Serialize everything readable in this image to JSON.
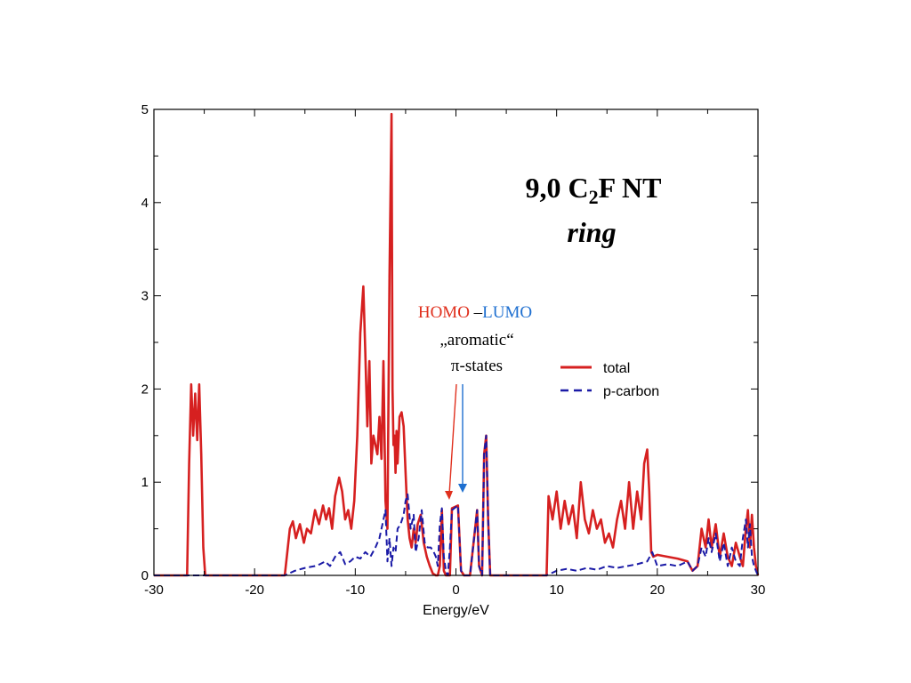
{
  "colors": {
    "total": "#d62020",
    "p_carbon": "#1a1aa6",
    "homo": "#e0301e",
    "lumo": "#1e6fd0"
  },
  "title": {
    "main_prefix": "9,0 C",
    "subscript": "2",
    "main_suffix": "F NT",
    "subtitle": "ring"
  },
  "annotation": {
    "homo": "HOMO",
    "dash": " –",
    "lumo": "LUMO",
    "line2": "„aromatic“",
    "line3": "π-states"
  },
  "chart_data": {
    "type": "line",
    "xlabel": "Energy/eV",
    "ylabel": "",
    "xlim": [
      -30,
      30
    ],
    "ylim": [
      0,
      5
    ],
    "xticks": [
      -30,
      -20,
      -10,
      0,
      10,
      20,
      30
    ],
    "yticks": [
      0,
      1,
      2,
      3,
      4,
      5
    ],
    "xtick_labels": [
      "-30",
      "-20",
      "-10",
      "0",
      "10",
      "20",
      "30"
    ],
    "ytick_labels": [
      "0",
      "1",
      "2",
      "3",
      "4",
      "5"
    ],
    "legend_position": "right",
    "series": [
      {
        "name": "total",
        "style": "solid",
        "x": [
          -30,
          -26.7,
          -26.5,
          -26.3,
          -26.1,
          -25.9,
          -25.7,
          -25.5,
          -25.3,
          -25.1,
          -24.9,
          -17.0,
          -16.5,
          -16.2,
          -15.9,
          -15.5,
          -15.1,
          -14.8,
          -14.4,
          -14.0,
          -13.6,
          -13.2,
          -12.9,
          -12.6,
          -12.3,
          -12.0,
          -11.6,
          -11.3,
          -11.0,
          -10.7,
          -10.4,
          -10.1,
          -9.8,
          -9.5,
          -9.2,
          -9.0,
          -8.8,
          -8.6,
          -8.4,
          -8.2,
          -8.0,
          -7.8,
          -7.6,
          -7.4,
          -7.2,
          -7.0,
          -6.8,
          -6.6,
          -6.4,
          -6.3,
          -6.2,
          -6.1,
          -6.0,
          -5.9,
          -5.8,
          -5.6,
          -5.4,
          -5.2,
          -5.0,
          -4.8,
          -4.6,
          -4.4,
          -4.2,
          -4.0,
          -3.8,
          -3.5,
          -3.2,
          -2.9,
          -2.6,
          -2.3,
          -2.0,
          -1.8,
          -1.6,
          -1.4,
          -1.2,
          -1.0,
          -0.8,
          -0.6,
          -0.4,
          0.2,
          0.5,
          0.8,
          1.1,
          1.4,
          2.1,
          2.3,
          2.6,
          2.8,
          3.0,
          3.2,
          3.4,
          3.6,
          3.8,
          4.0,
          9.0,
          9.2,
          9.6,
          10.0,
          10.4,
          10.8,
          11.2,
          11.6,
          12.0,
          12.4,
          12.8,
          13.2,
          13.6,
          14.0,
          14.4,
          14.8,
          15.2,
          15.6,
          16.0,
          16.4,
          16.8,
          17.2,
          17.6,
          18.0,
          18.4,
          18.7,
          19.0,
          19.2,
          19.4,
          19.6,
          20.0,
          21.0,
          22.0,
          23.0,
          23.5,
          24.0,
          24.4,
          24.8,
          25.1,
          25.4,
          25.8,
          26.2,
          26.6,
          27.0,
          27.4,
          27.8,
          28.2,
          28.5,
          28.8,
          29.0,
          29.2,
          29.4,
          29.6,
          29.8,
          30.0
        ],
        "y": [
          0,
          0,
          1.2,
          2.05,
          1.5,
          1.95,
          1.45,
          2.05,
          1.3,
          0.3,
          0,
          0,
          0.5,
          0.58,
          0.4,
          0.55,
          0.35,
          0.5,
          0.45,
          0.7,
          0.55,
          0.75,
          0.6,
          0.72,
          0.5,
          0.85,
          1.05,
          0.9,
          0.6,
          0.7,
          0.5,
          0.8,
          1.5,
          2.6,
          3.1,
          2.4,
          1.6,
          2.3,
          1.2,
          1.5,
          1.4,
          1.3,
          1.7,
          1.25,
          2.3,
          0.8,
          0.5,
          3.2,
          4.95,
          2.0,
          1.4,
          1.5,
          1.1,
          1.55,
          1.2,
          1.7,
          1.75,
          1.6,
          1.1,
          0.6,
          0.4,
          0.3,
          0.5,
          0.35,
          0.55,
          0.65,
          0.35,
          0.2,
          0.1,
          0.02,
          0,
          0,
          0.1,
          0.7,
          0.05,
          0,
          0,
          0,
          0.72,
          0.75,
          0.05,
          0,
          0,
          0,
          0.7,
          0.1,
          0,
          1.3,
          1.5,
          0.6,
          0,
          0,
          0,
          0,
          0,
          0.85,
          0.6,
          0.9,
          0.5,
          0.8,
          0.55,
          0.75,
          0.4,
          1.0,
          0.6,
          0.45,
          0.7,
          0.5,
          0.6,
          0.35,
          0.45,
          0.3,
          0.6,
          0.8,
          0.5,
          1.0,
          0.5,
          0.9,
          0.6,
          1.2,
          1.35,
          0.9,
          0.25,
          0.2,
          0.22,
          0.2,
          0.18,
          0.15,
          0.05,
          0.1,
          0.5,
          0.3,
          0.6,
          0.3,
          0.55,
          0.2,
          0.45,
          0.2,
          0.1,
          0.35,
          0.2,
          0.1,
          0.5,
          0.7,
          0.3,
          0.65,
          0.3,
          0.1,
          0
        ]
      },
      {
        "name": "p-carbon",
        "style": "dashed",
        "x": [
          -30,
          -17.0,
          -16.0,
          -15.0,
          -14.0,
          -13.5,
          -13.0,
          -12.5,
          -12.0,
          -11.5,
          -11.0,
          -10.5,
          -10.0,
          -9.5,
          -9.0,
          -8.5,
          -8.0,
          -7.6,
          -7.3,
          -7.0,
          -6.8,
          -6.6,
          -6.4,
          -6.2,
          -6.0,
          -5.8,
          -5.5,
          -5.2,
          -5.0,
          -4.8,
          -4.5,
          -4.2,
          -4.0,
          -3.7,
          -3.4,
          -3.1,
          -2.8,
          -2.5,
          -2.2,
          -2.0,
          -1.8,
          -1.6,
          -1.4,
          -1.2,
          -1.0,
          -0.8,
          -0.6,
          -0.4,
          0.2,
          0.5,
          0.8,
          1.1,
          1.4,
          2.1,
          2.3,
          2.6,
          2.8,
          3.0,
          3.2,
          3.4,
          3.6,
          3.8,
          4.0,
          9.0,
          10.0,
          11.0,
          12.0,
          13.0,
          14.0,
          15.0,
          16.0,
          17.0,
          18.0,
          19.0,
          19.5,
          20.0,
          21.0,
          22.0,
          23.0,
          23.5,
          24.0,
          24.4,
          24.8,
          25.1,
          25.4,
          25.8,
          26.2,
          26.6,
          27.0,
          27.4,
          27.8,
          28.2,
          28.5,
          28.8,
          29.0,
          29.2,
          29.4,
          29.6,
          29.8,
          30.0
        ],
        "y": [
          0,
          0,
          0.05,
          0.08,
          0.1,
          0.12,
          0.15,
          0.1,
          0.2,
          0.25,
          0.12,
          0.15,
          0.2,
          0.18,
          0.25,
          0.2,
          0.3,
          0.4,
          0.55,
          0.7,
          0.15,
          0.4,
          0.1,
          0.3,
          0.25,
          0.5,
          0.55,
          0.65,
          0.8,
          0.87,
          0.5,
          0.65,
          0.25,
          0.4,
          0.7,
          0.35,
          0.3,
          0.3,
          0.25,
          0.2,
          0.1,
          0.55,
          0.72,
          0.2,
          0.05,
          0,
          0.3,
          0.7,
          0.75,
          0.05,
          0,
          0,
          0,
          0.7,
          0.1,
          0,
          1.3,
          1.5,
          0.6,
          0,
          0,
          0,
          0,
          0,
          0.05,
          0.07,
          0.05,
          0.08,
          0.06,
          0.1,
          0.08,
          0.1,
          0.12,
          0.15,
          0.25,
          0.1,
          0.12,
          0.1,
          0.15,
          0.05,
          0.1,
          0.3,
          0.2,
          0.4,
          0.25,
          0.45,
          0.15,
          0.35,
          0.1,
          0.3,
          0.15,
          0.1,
          0.4,
          0.6,
          0.3,
          0.55,
          0.2,
          0.1,
          0.05,
          0
        ]
      }
    ]
  }
}
